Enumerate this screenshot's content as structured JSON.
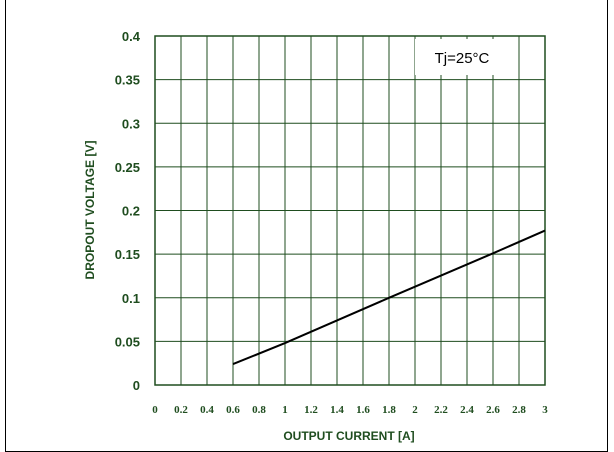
{
  "chart_data": {
    "type": "line",
    "title": "",
    "xlabel": "OUTPUT CURRENT [A]",
    "ylabel": "DROPOUT VOLTAGE [V]",
    "xlim": [
      0,
      3
    ],
    "ylim": [
      0,
      0.4
    ],
    "x_ticks": [
      "0",
      "0.2",
      "0.4",
      "0.6",
      "0.8",
      "1",
      "1.2",
      "1.4",
      "1.6",
      "1.8",
      "2",
      "2.2",
      "2.4",
      "2.6",
      "2.8",
      "3"
    ],
    "y_ticks": [
      "0",
      "0.05",
      "0.1",
      "0.15",
      "0.2",
      "0.25",
      "0.3",
      "0.35",
      "0.4"
    ],
    "grid": true,
    "annotation": "Tj=25°C",
    "series": [
      {
        "x": [
          0.6,
          1.0,
          1.8,
          2.6,
          3.0
        ],
        "y": [
          0.024,
          0.048,
          0.1,
          0.151,
          0.177
        ]
      }
    ],
    "colors": {
      "grid": "#1f4d1f",
      "text": "#1f4d1f",
      "line": "#000000"
    }
  }
}
